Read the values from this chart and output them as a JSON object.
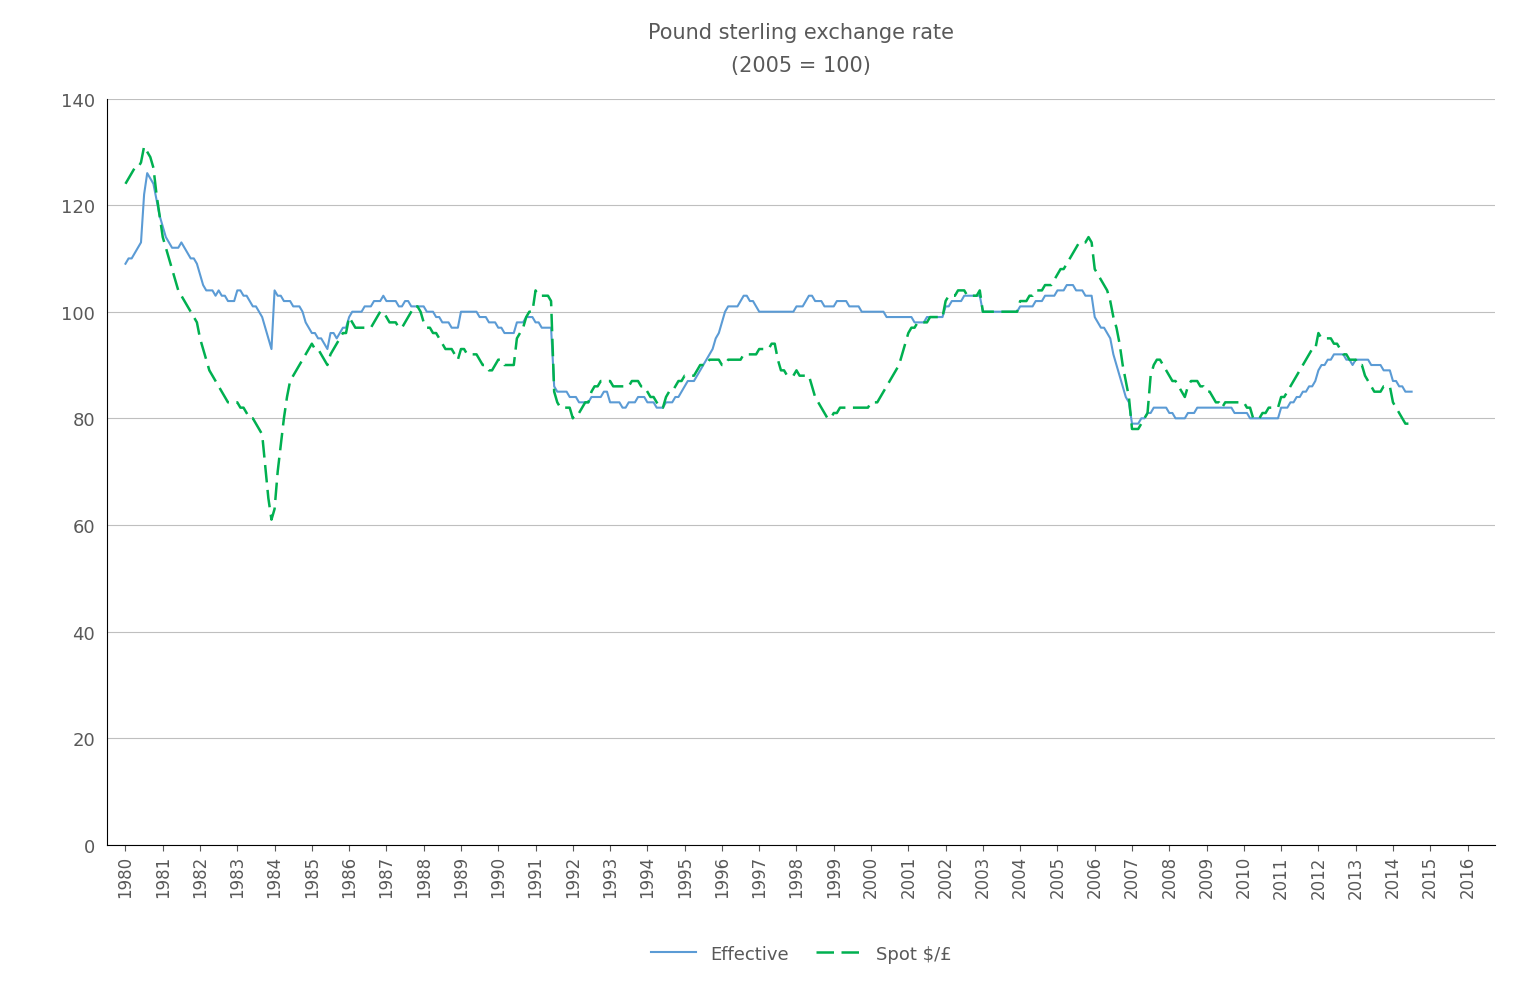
{
  "title": "Pound sterling exchange rate",
  "subtitle": "(2005 = 100)",
  "title_color": "#595959",
  "subtitle_color": "#595959",
  "effective_color": "#5B9BD5",
  "spot_color": "#00B050",
  "background_color": "#ffffff",
  "grid_color": "#bfbfbf",
  "ylim": [
    0,
    140
  ],
  "yticks": [
    0,
    20,
    40,
    60,
    80,
    100,
    120,
    140
  ],
  "legend_labels": [
    "Effective",
    "Spot $/£"
  ],
  "effective_monthly": [
    109,
    110,
    110,
    111,
    112,
    113,
    122,
    126,
    125,
    124,
    121,
    118,
    116,
    114,
    113,
    112,
    112,
    112,
    113,
    112,
    111,
    110,
    110,
    109,
    107,
    105,
    104,
    104,
    104,
    103,
    104,
    103,
    103,
    102,
    102,
    102,
    104,
    104,
    103,
    103,
    102,
    101,
    101,
    100,
    99,
    97,
    95,
    93,
    104,
    103,
    103,
    102,
    102,
    102,
    101,
    101,
    101,
    100,
    98,
    97,
    96,
    96,
    95,
    95,
    94,
    93,
    96,
    96,
    95,
    96,
    97,
    97,
    99,
    100,
    100,
    100,
    100,
    101,
    101,
    101,
    102,
    102,
    102,
    103,
    102,
    102,
    102,
    102,
    101,
    101,
    102,
    102,
    101,
    101,
    101,
    101,
    101,
    100,
    100,
    100,
    99,
    99,
    98,
    98,
    98,
    97,
    97,
    97,
    100,
    100,
    100,
    100,
    100,
    100,
    99,
    99,
    99,
    98,
    98,
    98,
    97,
    97,
    96,
    96,
    96,
    96,
    98,
    98,
    98,
    99,
    99,
    99,
    98,
    98,
    97,
    97,
    97,
    97,
    86,
    85,
    85,
    85,
    85,
    84,
    84,
    84,
    83,
    83,
    83,
    83,
    84,
    84,
    84,
    84,
    85,
    85,
    83,
    83,
    83,
    83,
    82,
    82,
    83,
    83,
    83,
    84,
    84,
    84,
    83,
    83,
    83,
    82,
    82,
    82,
    83,
    83,
    83,
    84,
    84,
    85,
    86,
    87,
    87,
    87,
    88,
    89,
    90,
    91,
    92,
    93,
    95,
    96,
    98,
    100,
    101,
    101,
    101,
    101,
    102,
    103,
    103,
    102,
    102,
    101,
    100,
    100,
    100,
    100,
    100,
    100,
    100,
    100,
    100,
    100,
    100,
    100,
    101,
    101,
    101,
    102,
    103,
    103,
    102,
    102,
    102,
    101,
    101,
    101,
    101,
    102,
    102,
    102,
    102,
    101,
    101,
    101,
    101,
    100,
    100,
    100,
    100,
    100,
    100,
    100,
    100,
    99,
    99,
    99,
    99,
    99,
    99,
    99,
    99,
    99,
    98,
    98,
    98,
    98,
    99,
    99,
    99,
    99,
    99,
    99,
    101,
    101,
    102,
    102,
    102,
    102,
    103,
    103,
    103,
    103,
    103,
    103,
    100,
    100,
    100,
    100,
    100,
    100,
    100,
    100,
    100,
    100,
    100,
    100,
    101,
    101,
    101,
    101,
    101,
    102,
    102,
    102,
    103,
    103,
    103,
    103,
    104,
    104,
    104,
    105,
    105,
    105,
    104,
    104,
    104,
    103,
    103,
    103,
    99,
    98,
    97,
    97,
    96,
    95,
    92,
    90,
    88,
    86,
    84,
    83,
    79,
    79,
    79,
    80,
    80,
    81,
    81,
    82,
    82,
    82,
    82,
    82,
    81,
    81,
    80,
    80,
    80,
    80,
    81,
    81,
    81,
    82,
    82,
    82,
    82,
    82,
    82,
    82,
    82,
    82,
    82,
    82,
    82,
    81,
    81,
    81,
    81,
    81,
    80,
    80,
    80,
    80,
    80,
    80,
    80,
    80,
    80,
    80,
    82,
    82,
    82,
    83,
    83,
    84,
    84,
    85,
    85,
    86,
    86,
    87,
    89,
    90,
    90,
    91,
    91,
    92,
    92,
    92,
    92,
    91,
    91,
    90,
    91,
    91,
    91,
    91,
    91,
    90,
    90,
    90,
    90,
    89,
    89,
    89,
    87,
    87,
    86,
    86,
    85,
    85,
    85
  ],
  "spot_monthly": [
    124,
    125,
    126,
    127,
    127,
    128,
    131,
    130,
    129,
    127,
    122,
    118,
    114,
    112,
    110,
    108,
    106,
    104,
    103,
    102,
    101,
    100,
    99,
    98,
    95,
    93,
    91,
    89,
    88,
    87,
    86,
    85,
    84,
    83,
    83,
    83,
    83,
    82,
    82,
    81,
    80,
    80,
    79,
    78,
    77,
    71,
    65,
    61,
    63,
    70,
    75,
    80,
    84,
    87,
    88,
    89,
    90,
    91,
    92,
    93,
    94,
    93,
    93,
    92,
    91,
    90,
    92,
    93,
    94,
    95,
    96,
    96,
    99,
    98,
    97,
    97,
    97,
    97,
    97,
    97,
    98,
    99,
    100,
    100,
    99,
    98,
    98,
    98,
    97,
    97,
    98,
    99,
    100,
    101,
    101,
    100,
    98,
    97,
    97,
    96,
    96,
    95,
    94,
    93,
    93,
    93,
    92,
    91,
    93,
    93,
    92,
    92,
    92,
    92,
    91,
    90,
    90,
    89,
    89,
    90,
    91,
    91,
    90,
    90,
    90,
    90,
    95,
    96,
    97,
    99,
    100,
    100,
    104,
    103,
    103,
    103,
    103,
    102,
    85,
    83,
    82,
    82,
    82,
    82,
    80,
    81,
    81,
    82,
    83,
    83,
    85,
    86,
    86,
    87,
    87,
    87,
    87,
    86,
    86,
    86,
    86,
    86,
    86,
    87,
    87,
    87,
    86,
    86,
    85,
    84,
    84,
    83,
    82,
    82,
    84,
    85,
    85,
    86,
    87,
    87,
    88,
    88,
    88,
    88,
    89,
    90,
    90,
    90,
    91,
    91,
    91,
    91,
    90,
    90,
    91,
    91,
    91,
    91,
    91,
    92,
    92,
    92,
    92,
    92,
    93,
    93,
    93,
    93,
    94,
    94,
    91,
    89,
    89,
    88,
    88,
    88,
    89,
    88,
    88,
    88,
    88,
    86,
    84,
    83,
    82,
    81,
    80,
    80,
    81,
    81,
    82,
    82,
    82,
    82,
    82,
    82,
    82,
    82,
    82,
    82,
    83,
    83,
    83,
    84,
    85,
    86,
    87,
    88,
    89,
    90,
    92,
    94,
    96,
    97,
    97,
    98,
    98,
    98,
    98,
    99,
    99,
    99,
    99,
    99,
    102,
    103,
    103,
    103,
    104,
    104,
    104,
    103,
    103,
    103,
    103,
    104,
    100,
    100,
    100,
    100,
    100,
    100,
    100,
    100,
    100,
    100,
    100,
    100,
    102,
    102,
    102,
    103,
    103,
    104,
    104,
    104,
    105,
    105,
    105,
    106,
    107,
    108,
    108,
    109,
    110,
    111,
    112,
    113,
    113,
    113,
    114,
    113,
    108,
    107,
    106,
    105,
    104,
    102,
    99,
    97,
    94,
    90,
    87,
    84,
    78,
    78,
    78,
    79,
    80,
    81,
    88,
    90,
    91,
    91,
    90,
    89,
    88,
    87,
    87,
    86,
    85,
    84,
    86,
    87,
    87,
    87,
    86,
    86,
    85,
    85,
    84,
    83,
    83,
    82,
    83,
    83,
    83,
    83,
    83,
    83,
    83,
    82,
    82,
    80,
    80,
    80,
    81,
    81,
    82,
    82,
    82,
    82,
    84,
    84,
    85,
    86,
    87,
    88,
    89,
    90,
    91,
    92,
    93,
    93,
    96,
    95,
    95,
    95,
    95,
    94,
    94,
    93,
    92,
    92,
    91,
    91,
    91,
    90,
    90,
    88,
    87,
    86,
    85,
    85,
    85,
    86,
    86,
    86,
    83,
    82,
    81,
    80,
    79,
    79,
    79
  ]
}
